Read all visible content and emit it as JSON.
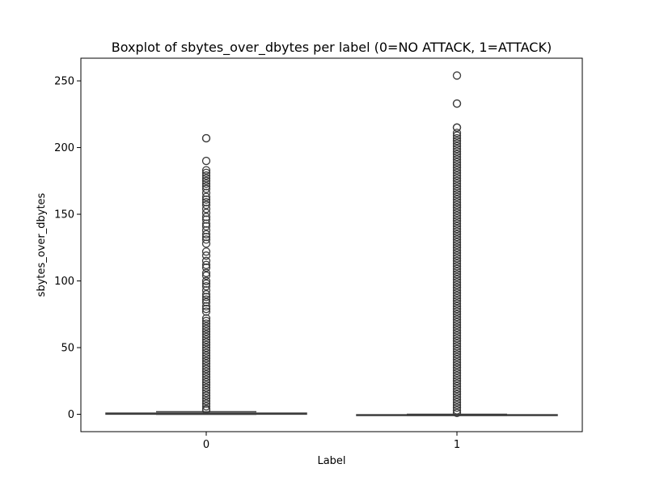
{
  "chart_data": {
    "type": "boxplot",
    "title": "Boxplot of sbytes_over_dbytes per label (0=NO ATTACK, 1=ATTACK)",
    "xlabel": "Label",
    "ylabel": "sbytes_over_dbytes",
    "categories": [
      "0",
      "1"
    ],
    "ylim": [
      -13,
      267
    ],
    "yticks": [
      0,
      50,
      100,
      150,
      200,
      250
    ],
    "grid": false,
    "box_color": "#3d3d3d",
    "boxes": [
      {
        "category": "0",
        "q1": 0.1,
        "median": 0.3,
        "q3": 0.9,
        "whisker_low": 0.0,
        "whisker_high": 1.9,
        "outliers": [
          207,
          207,
          190,
          183,
          181,
          179,
          177,
          175,
          173,
          171,
          169,
          166,
          163,
          161,
          159,
          157,
          154,
          151,
          148,
          146,
          143,
          141,
          138,
          135,
          133,
          131,
          128,
          122,
          119,
          115,
          112,
          110,
          106,
          104,
          100,
          98,
          96,
          93,
          90,
          88,
          86,
          84,
          81,
          79,
          77,
          72,
          70,
          68,
          66,
          64,
          62,
          60,
          58,
          56,
          54,
          52,
          50,
          48,
          46,
          44,
          42,
          40,
          38,
          36,
          34,
          32,
          30,
          28,
          26,
          24,
          22,
          20,
          18,
          16,
          14,
          12,
          10,
          8,
          6,
          4,
          3
        ]
      },
      {
        "category": "1",
        "q1": -0.6,
        "median": -0.5,
        "q3": -0.3,
        "whisker_low": -0.8,
        "whisker_high": 0.0,
        "outliers": [
          254,
          233,
          233,
          215,
          215,
          211,
          209,
          207,
          205,
          203,
          201,
          199,
          197,
          195,
          193,
          191,
          189,
          187,
          185,
          183,
          181,
          179,
          177,
          175,
          173,
          171,
          169,
          167,
          165,
          163,
          161,
          159,
          157,
          155,
          153,
          151,
          149,
          147,
          145,
          143,
          141,
          139,
          137,
          135,
          133,
          131,
          129,
          127,
          125,
          123,
          121,
          119,
          117,
          115,
          113,
          111,
          109,
          107,
          105,
          103,
          101,
          99,
          97,
          95,
          93,
          91,
          89,
          87,
          85,
          83,
          81,
          79,
          77,
          75,
          73,
          71,
          69,
          67,
          65,
          63,
          61,
          59,
          57,
          55,
          53,
          51,
          49,
          47,
          45,
          43,
          41,
          39,
          37,
          35,
          33,
          31,
          29,
          27,
          25,
          23,
          21,
          19,
          17,
          15,
          13,
          11,
          9,
          7,
          5,
          3,
          1
        ]
      }
    ]
  }
}
